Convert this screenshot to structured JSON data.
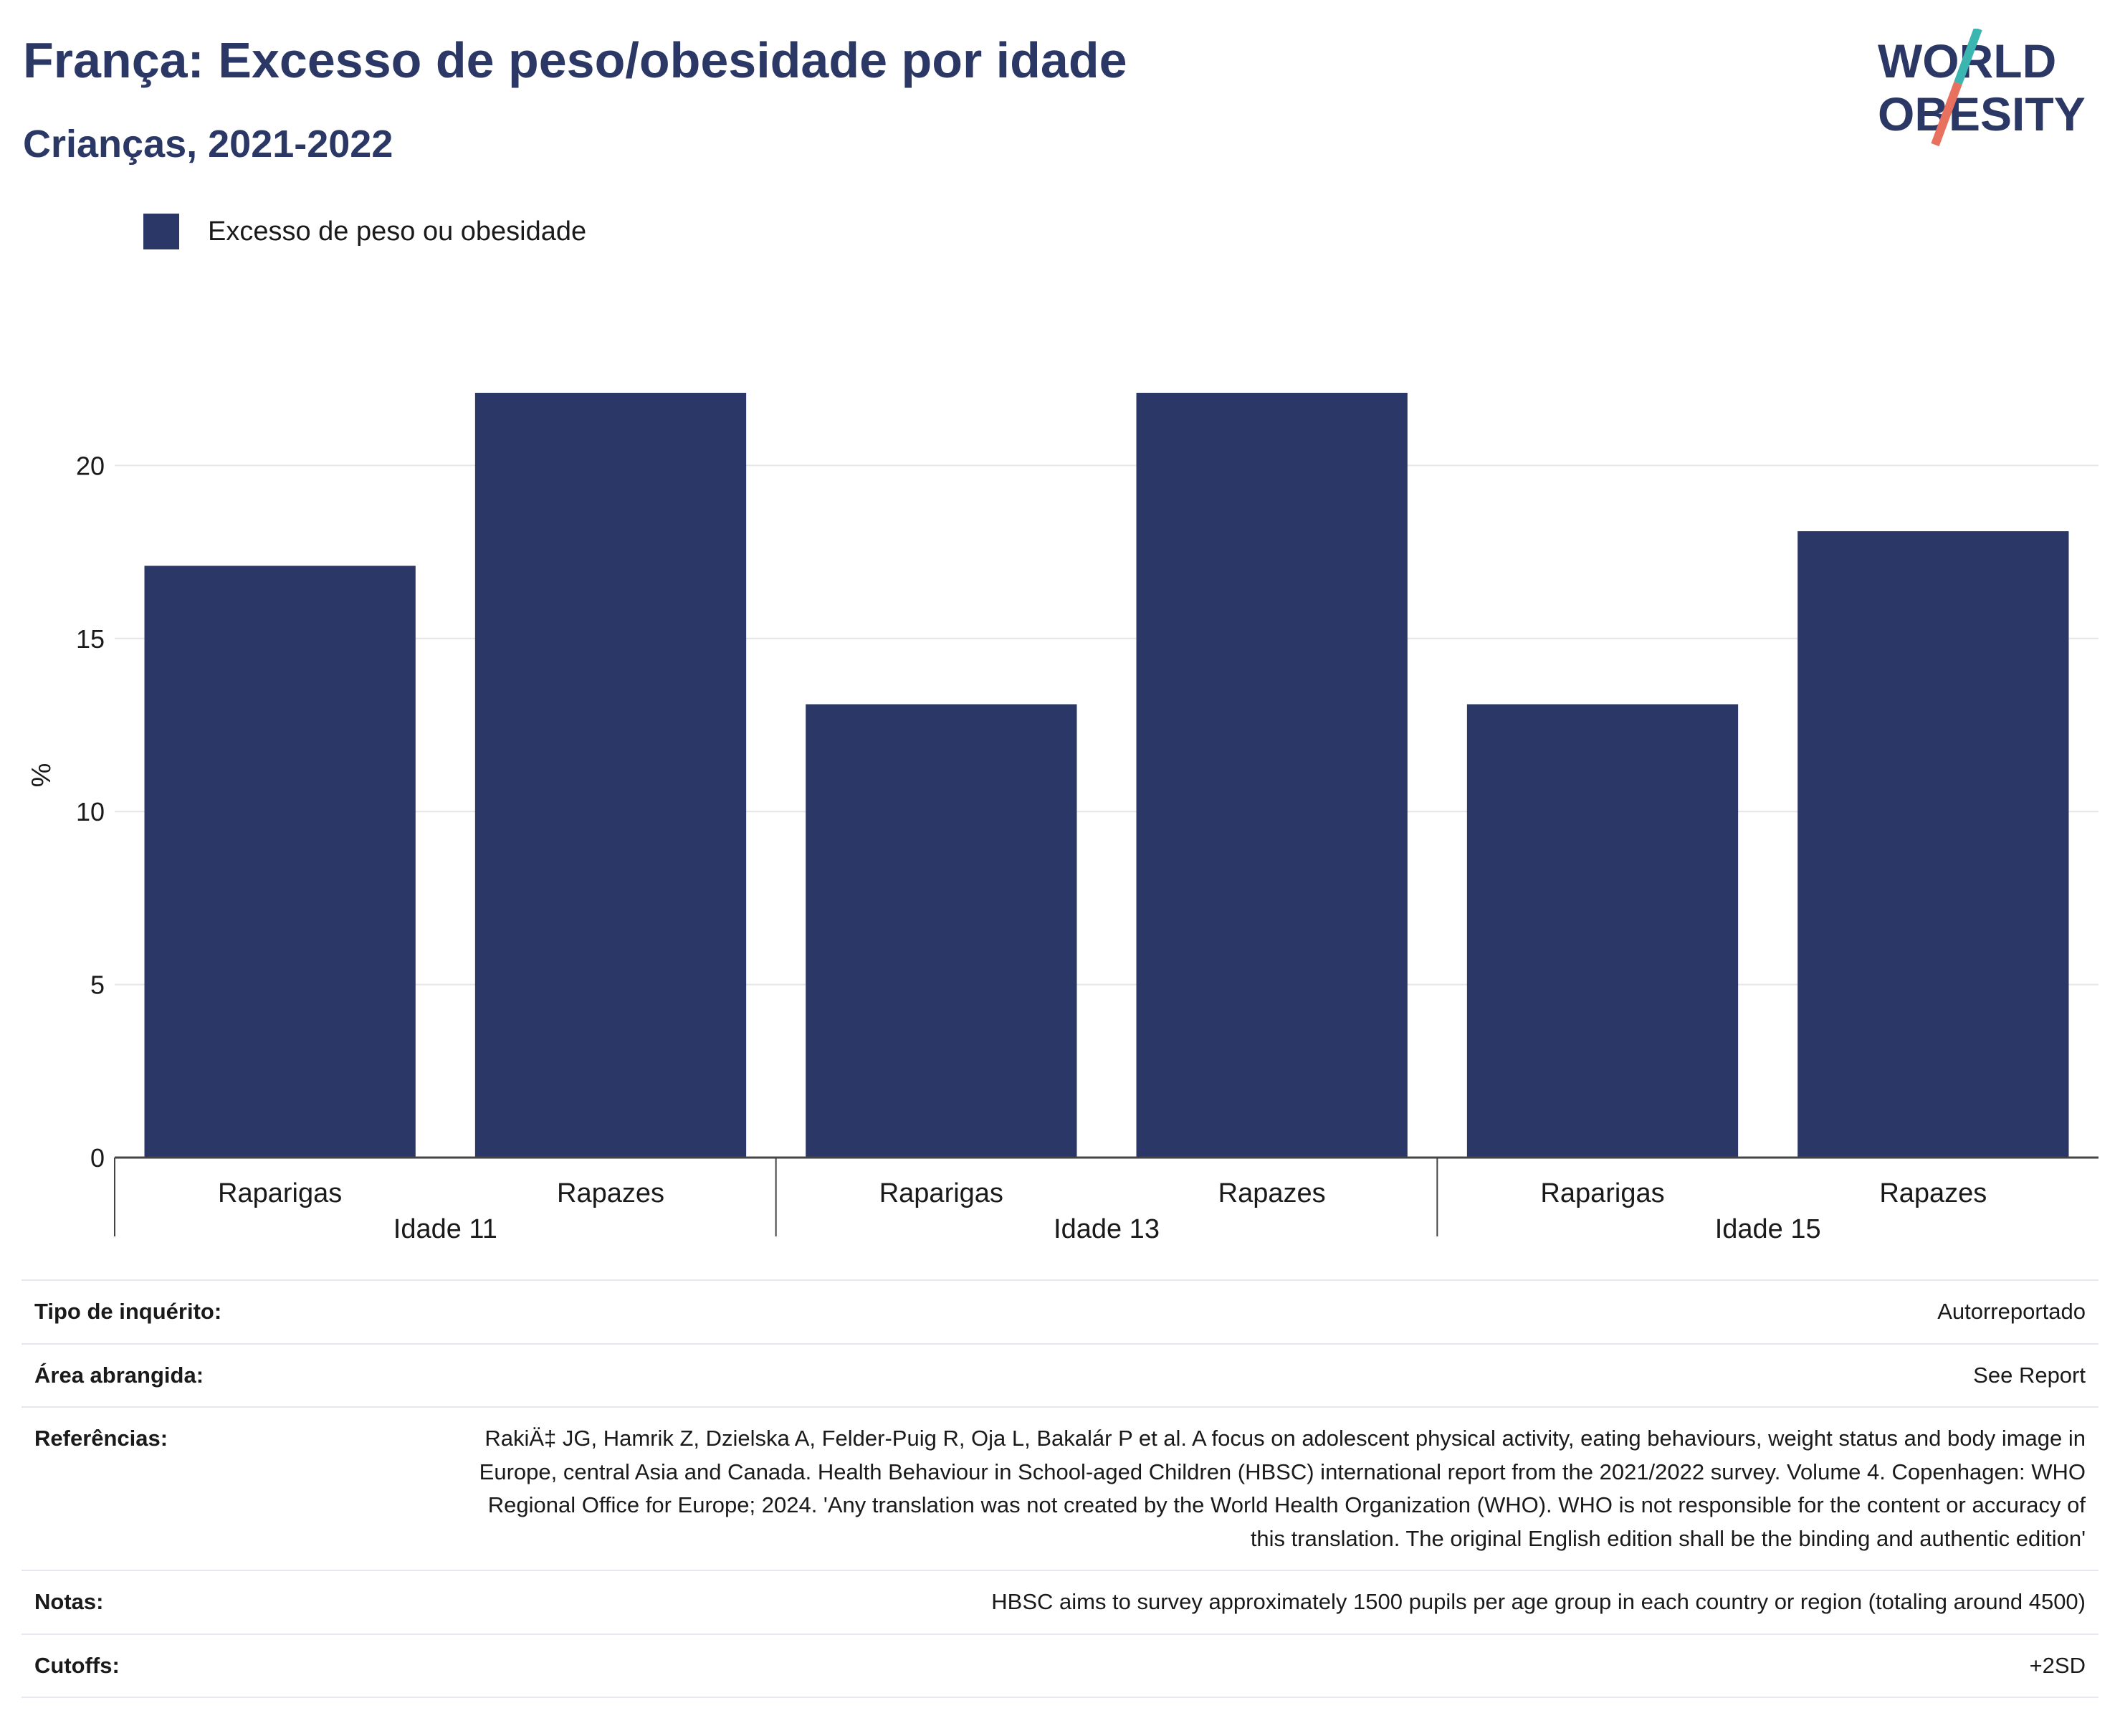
{
  "header": {
    "title": "França: Excesso de peso/obesidade por idade",
    "subtitle": "Crianças, 2021-2022"
  },
  "logo": {
    "line1": "WORLD",
    "line2": "OBESITY",
    "slash_colors": [
      "#3ab5b0",
      "#e8705f"
    ]
  },
  "chart_data": {
    "type": "bar",
    "ylabel": "%",
    "ylim": [
      0,
      22.1
    ],
    "yticks": [
      0,
      5,
      10,
      15,
      20
    ],
    "grid": true,
    "legend_placement": "top-left",
    "groups": [
      {
        "label": "Idade 11",
        "categories": [
          "Raparigas",
          "Rapazes"
        ]
      },
      {
        "label": "Idade 13",
        "categories": [
          "Raparigas",
          "Rapazes"
        ]
      },
      {
        "label": "Idade 15",
        "categories": [
          "Raparigas",
          "Rapazes"
        ]
      }
    ],
    "series": [
      {
        "name": "Excesso de peso ou obesidade",
        "color": "#2b3766",
        "values": [
          17.1,
          22.1,
          13.1,
          22.1,
          13.1,
          18.1
        ]
      }
    ]
  },
  "info": [
    {
      "label": "Tipo de inquérito:",
      "value": "Autorreportado"
    },
    {
      "label": "Área abrangida:",
      "value": "See Report"
    },
    {
      "label": "Referências:",
      "value": "RakiÄ‡ JG, Hamrik Z, Dzielska A, Felder-Puig R, Oja L, Bakalár P et al. A focus on adolescent physical activity, eating behaviours, weight status and body image in Europe, central Asia and Canada. Health Behaviour in School-aged Children (HBSC) international report from the 2021/2022 survey. Volume 4. Copenhagen: WHO Regional Office for Europe; 2024. 'Any translation was not created by the World Health Organization (WHO). WHO is not responsible for the content or accuracy of this translation. The original English edition shall be the binding and authentic edition'"
    },
    {
      "label": "Notas:",
      "value": "HBSC aims to survey approximately 1500 pupils per age group in each country or region (totaling around 4500)"
    },
    {
      "label": "Cutoffs:",
      "value": "+2SD"
    }
  ]
}
